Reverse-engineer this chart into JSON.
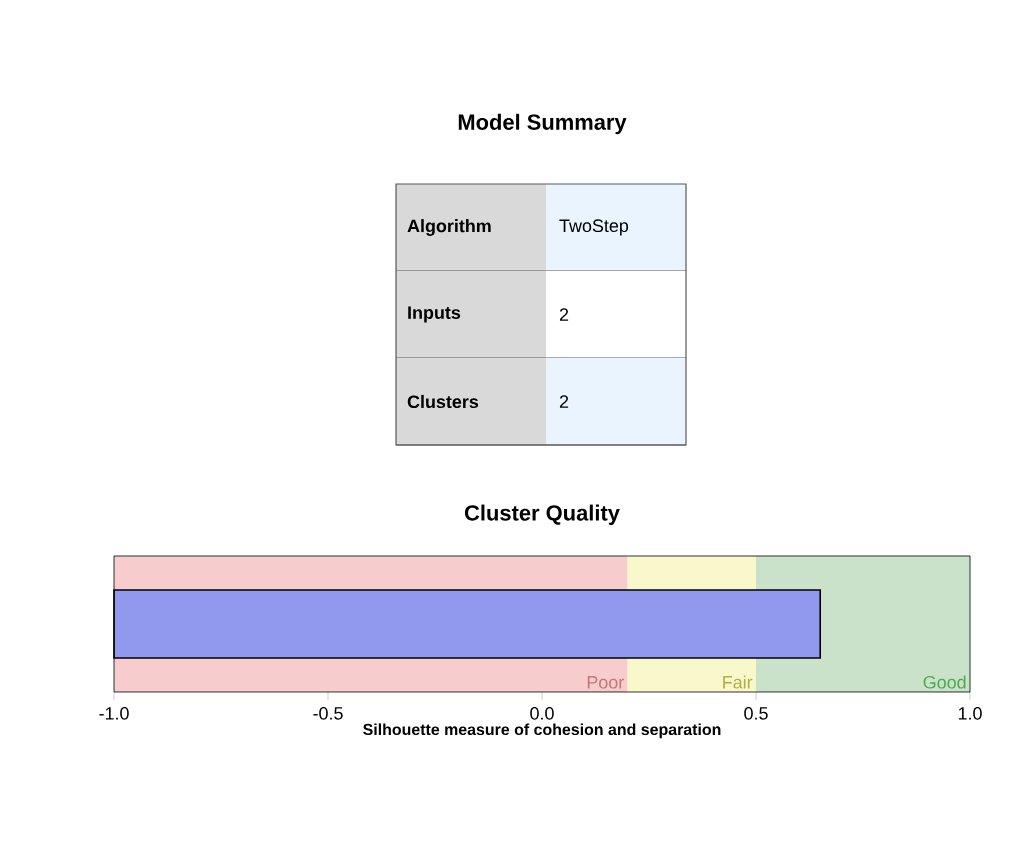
{
  "chart_data": {
    "type": "bar",
    "orientation": "horizontal",
    "title": "Cluster Quality",
    "xlabel": "Silhouette measure of cohesion and separation",
    "categories": [
      null
    ],
    "base": [
      -1
    ],
    "values": [
      1.65
    ],
    "color": "#9099ee",
    "xlim": [
      -1,
      1
    ],
    "xticks": [
      {
        "value": -1,
        "label": "-1.0"
      },
      {
        "value": -0.5,
        "label": "-0.5"
      },
      {
        "value": 0,
        "label": "0.0"
      },
      {
        "value": 0.5,
        "label": "0.5"
      },
      {
        "value": 1,
        "label": "1.0"
      }
    ],
    "tick_labels": "x",
    "bands": [
      {
        "axis": "x",
        "from": -1,
        "to": 0.2,
        "label": "Poor",
        "color": "#f7cccc"
      },
      {
        "axis": "x",
        "from": 0.2,
        "to": 0.5,
        "label": "Fair",
        "color": "#f8f8cc"
      },
      {
        "axis": "x",
        "from": 0.5,
        "to": 1,
        "label": "Good",
        "color": "#cae2c9"
      }
    ],
    "annotations": [
      "Model Summary",
      "Algorithm",
      "TwoStep",
      "Inputs",
      "2",
      "Clusters",
      "2"
    ]
  }
}
